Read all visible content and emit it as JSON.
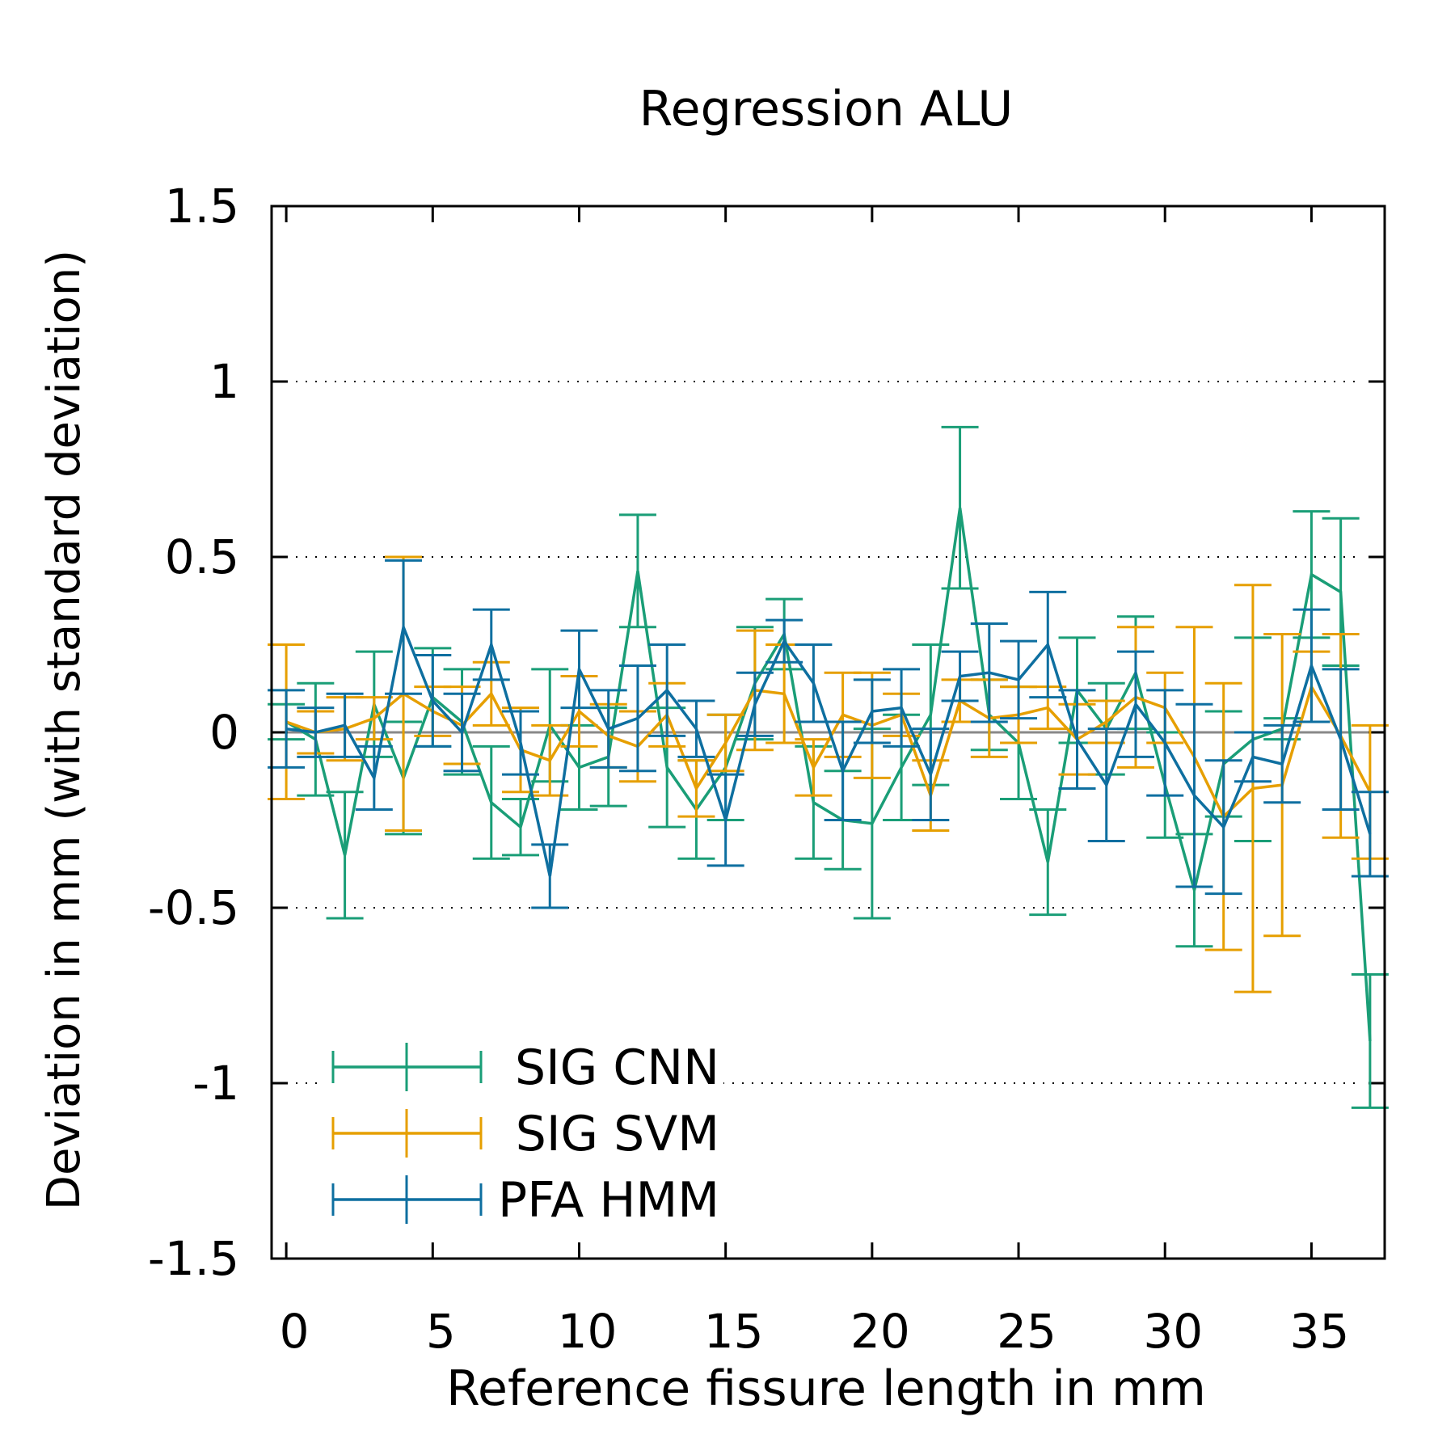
{
  "chart_data": {
    "type": "line",
    "title": "Regression ALU",
    "xlabel": "Reference fissure length in mm",
    "ylabel": "Deviation in mm (with standard deviation)",
    "xlim": [
      -0.5,
      37.5
    ],
    "ylim": [
      -1.5,
      1.5
    ],
    "x_ticks": [
      0,
      5,
      10,
      15,
      20,
      25,
      30,
      35
    ],
    "x_tick_labels": [
      "0",
      "5",
      "10",
      "15",
      "20",
      "25",
      "30",
      "35"
    ],
    "y_ticks": [
      -1.5,
      -1,
      -0.5,
      0,
      0.5,
      1,
      1.5
    ],
    "y_tick_labels": [
      "-1.5",
      "-1",
      "-0.5",
      "0",
      "0.5",
      "1",
      "1.5"
    ],
    "grid": "dotted horizontal",
    "zero_line": true,
    "legend_position": "bottom-left",
    "x": [
      0,
      1,
      2,
      3,
      4,
      5,
      6,
      7,
      8,
      9,
      10,
      11,
      12,
      13,
      14,
      15,
      16,
      17,
      18,
      19,
      20,
      21,
      22,
      23,
      24,
      25,
      26,
      27,
      28,
      29,
      30,
      31,
      32,
      33,
      34,
      35,
      36,
      37
    ],
    "series": [
      {
        "name": "SIG CNN",
        "color": "#1a9e77",
        "y": [
          0.03,
          -0.02,
          -0.35,
          0.08,
          -0.13,
          0.1,
          0.03,
          -0.2,
          -0.27,
          0.02,
          -0.1,
          -0.07,
          0.46,
          -0.1,
          -0.22,
          -0.1,
          0.14,
          0.28,
          -0.2,
          -0.25,
          -0.26,
          -0.1,
          0.05,
          0.64,
          0.05,
          -0.03,
          -0.37,
          0.12,
          0.01,
          0.17,
          -0.15,
          -0.45,
          -0.09,
          -0.02,
          0.01,
          0.45,
          0.4,
          -0.88
        ],
        "err": [
          0.05,
          0.16,
          0.18,
          0.15,
          0.16,
          0.14,
          0.15,
          0.16,
          0.08,
          0.16,
          0.12,
          0.14,
          0.16,
          0.17,
          0.14,
          0.15,
          0.16,
          0.1,
          0.16,
          0.14,
          0.27,
          0.15,
          0.2,
          0.23,
          0.1,
          0.16,
          0.15,
          0.15,
          0.13,
          0.16,
          0.15,
          0.16,
          0.15,
          0.29,
          0.03,
          0.18,
          0.21,
          0.19
        ]
      },
      {
        "name": "SIG SVM",
        "color": "#e69f00",
        "y": [
          0.03,
          0.0,
          0.01,
          0.04,
          0.11,
          0.06,
          0.02,
          0.11,
          -0.05,
          -0.08,
          0.06,
          -0.01,
          -0.04,
          0.05,
          -0.16,
          -0.03,
          0.12,
          0.11,
          -0.1,
          0.05,
          0.02,
          0.05,
          -0.18,
          0.09,
          0.04,
          0.05,
          0.07,
          -0.02,
          0.03,
          0.1,
          0.07,
          -0.07,
          -0.24,
          -0.16,
          -0.15,
          0.13,
          -0.01,
          -0.17
        ],
        "err": [
          0.22,
          0.06,
          0.09,
          0.06,
          0.39,
          0.07,
          0.11,
          0.09,
          0.12,
          0.1,
          0.1,
          0.09,
          0.1,
          0.09,
          0.08,
          0.08,
          0.17,
          0.14,
          0.08,
          0.12,
          0.15,
          0.06,
          0.1,
          0.06,
          0.11,
          0.08,
          0.06,
          0.1,
          0.06,
          0.2,
          0.1,
          0.37,
          0.38,
          0.58,
          0.43,
          0.1,
          0.29,
          0.19
        ]
      },
      {
        "name": "PFA HMM",
        "color": "#0e6fa0",
        "y": [
          0.01,
          0.0,
          0.02,
          -0.13,
          0.3,
          0.09,
          0.0,
          0.25,
          -0.03,
          -0.41,
          0.18,
          0.01,
          0.04,
          0.12,
          0.01,
          -0.25,
          0.08,
          0.26,
          0.14,
          -0.11,
          0.06,
          0.07,
          -0.12,
          0.16,
          0.17,
          0.15,
          0.25,
          -0.02,
          -0.15,
          0.08,
          -0.03,
          -0.18,
          -0.27,
          -0.07,
          -0.09,
          0.19,
          -0.02,
          -0.29
        ],
        "err": [
          0.11,
          0.07,
          0.09,
          0.09,
          0.19,
          0.13,
          0.11,
          0.1,
          0.09,
          0.09,
          0.11,
          0.11,
          0.15,
          0.13,
          0.08,
          0.13,
          0.09,
          0.06,
          0.11,
          0.14,
          0.09,
          0.11,
          0.13,
          0.07,
          0.14,
          0.11,
          0.15,
          0.14,
          0.16,
          0.15,
          0.15,
          0.26,
          0.19,
          0.07,
          0.11,
          0.16,
          0.2,
          0.12
        ]
      }
    ]
  }
}
